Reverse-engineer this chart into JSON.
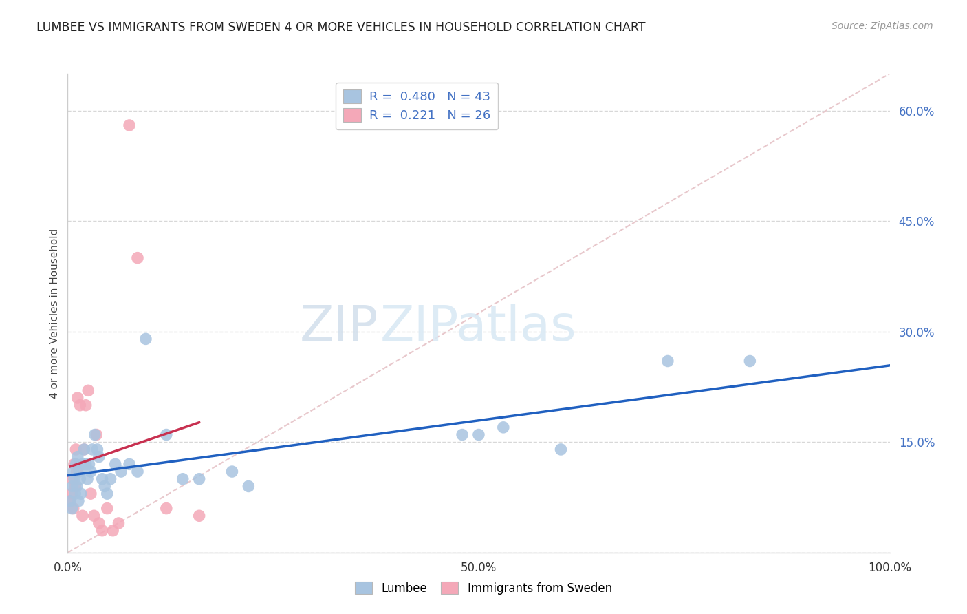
{
  "title": "LUMBEE VS IMMIGRANTS FROM SWEDEN 4 OR MORE VEHICLES IN HOUSEHOLD CORRELATION CHART",
  "source": "Source: ZipAtlas.com",
  "ylabel": "4 or more Vehicles in Household",
  "xlim": [
    0.0,
    1.0
  ],
  "ylim": [
    0.0,
    0.65
  ],
  "xticks": [
    0.0,
    0.1,
    0.2,
    0.3,
    0.4,
    0.5,
    0.6,
    0.7,
    0.8,
    0.9,
    1.0
  ],
  "xticklabels": [
    "0.0%",
    "",
    "",
    "",
    "",
    "50.0%",
    "",
    "",
    "",
    "",
    "100.0%"
  ],
  "yticks": [
    0.0,
    0.15,
    0.3,
    0.45,
    0.6
  ],
  "yticklabels": [
    "",
    "15.0%",
    "30.0%",
    "45.0%",
    "60.0%"
  ],
  "legend_lumbee": "Lumbee",
  "legend_sweden": "Immigrants from Sweden",
  "R_lumbee": 0.48,
  "N_lumbee": 43,
  "R_sweden": 0.221,
  "N_sweden": 26,
  "lumbee_color": "#a8c4e0",
  "sweden_color": "#f4a8b8",
  "lumbee_line_color": "#2060c0",
  "sweden_line_color": "#c83050",
  "diagonal_color": "#e8c8cc",
  "background_color": "#ffffff",
  "grid_color": "#d8d8d8",
  "lumbee_x": [
    0.003,
    0.005,
    0.006,
    0.007,
    0.008,
    0.009,
    0.01,
    0.011,
    0.012,
    0.013,
    0.014,
    0.015,
    0.016,
    0.018,
    0.02,
    0.022,
    0.024,
    0.026,
    0.028,
    0.03,
    0.033,
    0.036,
    0.038,
    0.042,
    0.045,
    0.048,
    0.052,
    0.058,
    0.065,
    0.075,
    0.085,
    0.095,
    0.12,
    0.14,
    0.16,
    0.2,
    0.22,
    0.48,
    0.5,
    0.53,
    0.6,
    0.73,
    0.83
  ],
  "lumbee_y": [
    0.07,
    0.06,
    0.09,
    0.11,
    0.1,
    0.08,
    0.12,
    0.09,
    0.13,
    0.07,
    0.11,
    0.1,
    0.08,
    0.12,
    0.14,
    0.12,
    0.1,
    0.12,
    0.11,
    0.14,
    0.16,
    0.14,
    0.13,
    0.1,
    0.09,
    0.08,
    0.1,
    0.12,
    0.11,
    0.12,
    0.11,
    0.29,
    0.16,
    0.1,
    0.1,
    0.11,
    0.09,
    0.16,
    0.16,
    0.17,
    0.14,
    0.26,
    0.26
  ],
  "sweden_x": [
    0.003,
    0.005,
    0.006,
    0.007,
    0.008,
    0.009,
    0.01,
    0.011,
    0.012,
    0.015,
    0.018,
    0.02,
    0.022,
    0.025,
    0.028,
    0.032,
    0.035,
    0.038,
    0.042,
    0.048,
    0.055,
    0.062,
    0.075,
    0.085,
    0.12,
    0.16
  ],
  "sweden_y": [
    0.07,
    0.08,
    0.1,
    0.06,
    0.12,
    0.09,
    0.14,
    0.11,
    0.21,
    0.2,
    0.05,
    0.14,
    0.2,
    0.22,
    0.08,
    0.05,
    0.16,
    0.04,
    0.03,
    0.06,
    0.03,
    0.04,
    0.58,
    0.4,
    0.06,
    0.05
  ]
}
